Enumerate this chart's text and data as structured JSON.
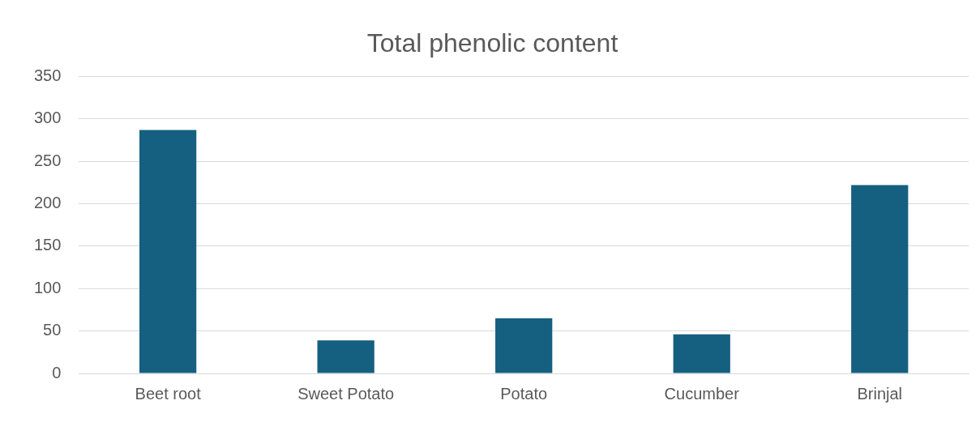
{
  "chart_data": {
    "type": "bar",
    "title": "Total phenolic content",
    "categories": [
      "Beet root",
      "Sweet Potato",
      "Potato",
      "Cucumber",
      "Brinjal"
    ],
    "values": [
      287,
      39,
      65,
      46,
      222
    ],
    "color": "#155f81",
    "ylim": [
      0,
      350
    ],
    "yticks": [
      0,
      50,
      100,
      150,
      200,
      250,
      300,
      350
    ],
    "grid": "y",
    "legend": false
  }
}
